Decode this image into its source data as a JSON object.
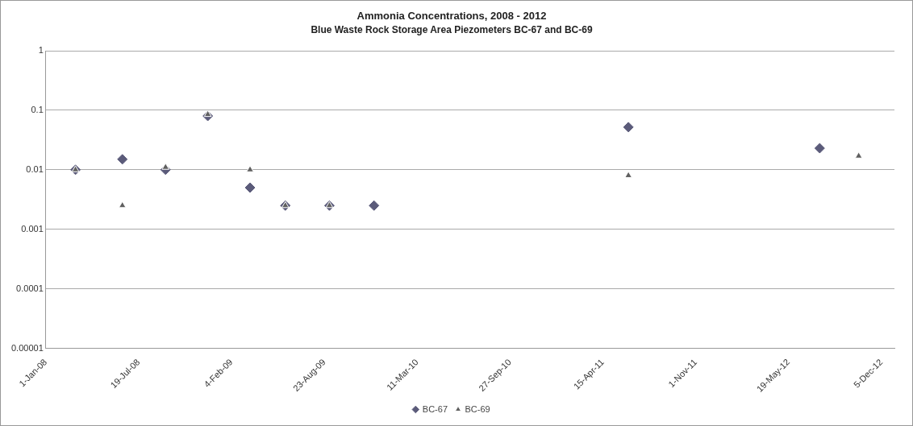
{
  "chart_data": {
    "type": "scatter",
    "title": "Ammonia Concentrations, 2008 - 2012",
    "subtitle": "Blue Waste Rock Storage Area Piezometers BC-67 and BC-69",
    "x": [
      "2008-03-05",
      "2008-06-14",
      "2008-09-15",
      "2008-12-15",
      "2009-03-16",
      "2009-05-31",
      "2009-09-03",
      "2009-12-08",
      "2011-06-09",
      "2012-07-25",
      "2012-10-17"
    ],
    "series": [
      {
        "name": "BC-67",
        "color": "#5b5b7a",
        "marker": "diamond",
        "values": [
          0.01,
          0.015,
          0.01,
          0.08,
          0.005,
          0.0025,
          0.0025,
          0.0025,
          0.052,
          0.023,
          null
        ]
      },
      {
        "name": "BC-69",
        "color": "#606060",
        "marker": "triangle",
        "values": [
          0.01,
          0.0025,
          0.011,
          0.085,
          0.01,
          0.0025,
          0.0025,
          null,
          0.008,
          null,
          0.017
        ]
      }
    ],
    "xlim": [
      "2008-01-01",
      "2013-01-02"
    ],
    "xticks": [
      {
        "value": "2008-01-01",
        "label": "1-Jan-08"
      },
      {
        "value": "2008-07-19",
        "label": "19-Jul-08"
      },
      {
        "value": "2009-02-04",
        "label": "4-Feb-09"
      },
      {
        "value": "2009-08-23",
        "label": "23-Aug-09"
      },
      {
        "value": "2010-03-11",
        "label": "11-Mar-10"
      },
      {
        "value": "2010-09-27",
        "label": "27-Sep-10"
      },
      {
        "value": "2011-04-15",
        "label": "15-Apr-11"
      },
      {
        "value": "2011-11-01",
        "label": "1-Nov-11"
      },
      {
        "value": "2012-05-19",
        "label": "19-May-12"
      },
      {
        "value": "2012-12-05",
        "label": "5-Dec-12"
      }
    ],
    "ylim": [
      1e-05,
      1
    ],
    "yticks": [
      {
        "value": 1e-05,
        "label": "0.00001"
      },
      0.0001,
      0.001,
      0.01,
      0.1,
      1
    ],
    "log": "y",
    "grid": "y",
    "legend": "bottom"
  }
}
